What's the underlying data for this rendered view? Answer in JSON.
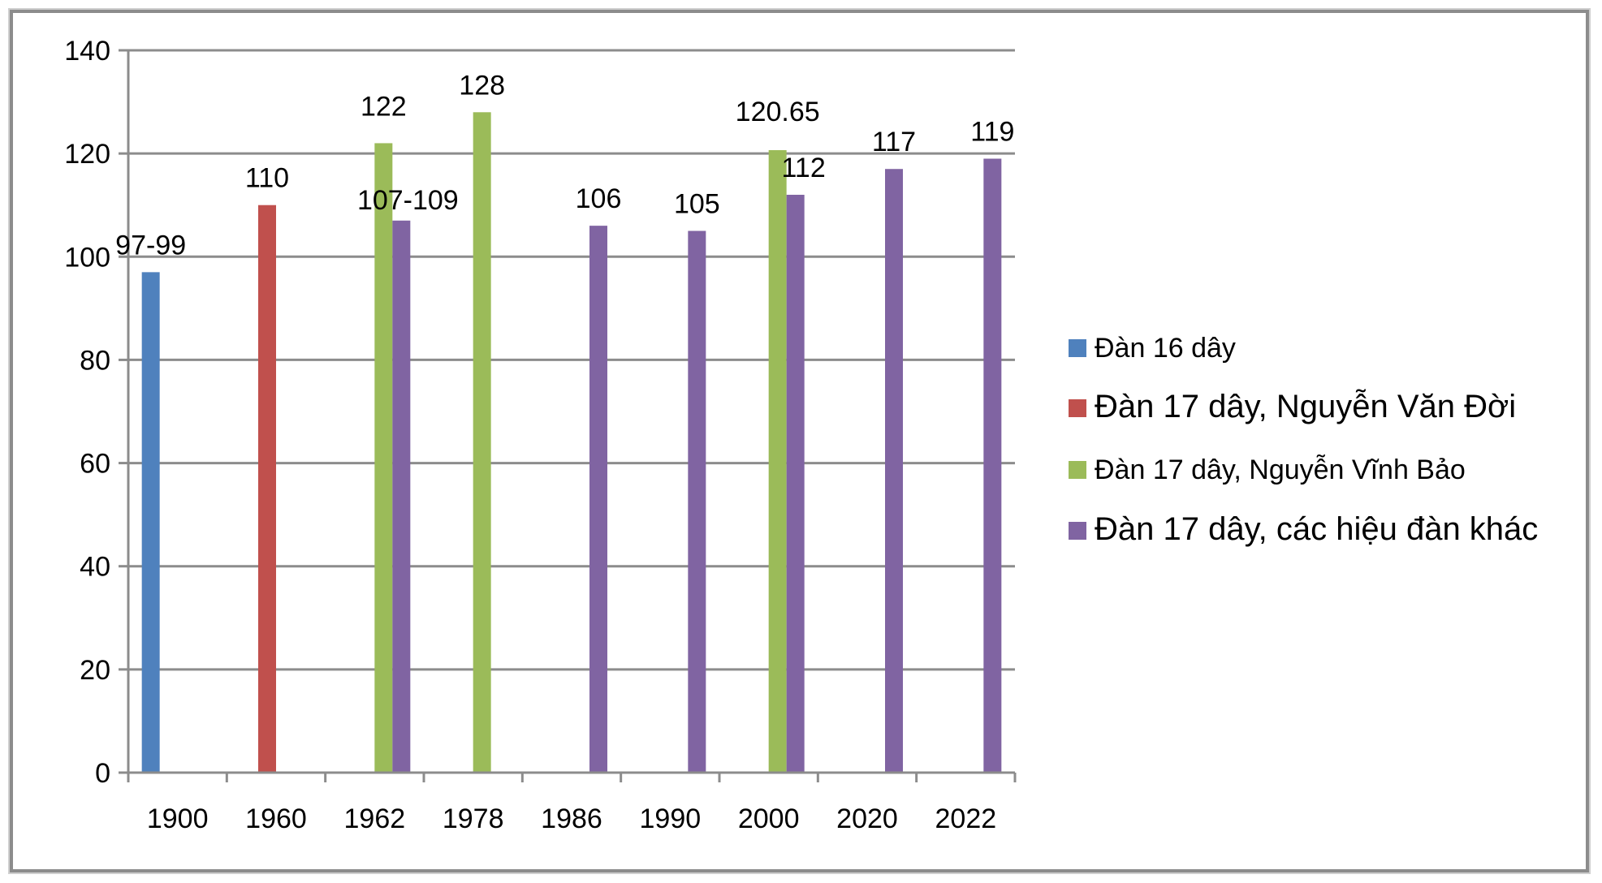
{
  "chart_data": {
    "type": "bar",
    "categories": [
      "1900",
      "1960",
      "1962",
      "1978",
      "1986",
      "1990",
      "2000",
      "2020",
      "2022"
    ],
    "ylim": [
      0,
      140
    ],
    "yticks": [
      0,
      20,
      40,
      60,
      80,
      100,
      120,
      140
    ],
    "grid": true,
    "legend_position": "right",
    "series": [
      {
        "name": "Đàn 16 dây",
        "color": "#4f81bd",
        "values": [
          97,
          null,
          null,
          null,
          null,
          null,
          null,
          null,
          null
        ],
        "labels": [
          "97-99",
          null,
          null,
          null,
          null,
          null,
          null,
          null,
          null
        ]
      },
      {
        "name": "Đàn 17 dây, Nguyễn Văn Đời",
        "color": "#c0504d",
        "values": [
          null,
          110,
          null,
          null,
          null,
          null,
          null,
          null,
          null
        ],
        "labels": [
          null,
          "110",
          null,
          null,
          null,
          null,
          null,
          null,
          null
        ]
      },
      {
        "name": "Đàn 17 dây, Nguyễn Vĩnh Bảo",
        "color": "#9bbb59",
        "values": [
          null,
          null,
          122,
          128,
          null,
          null,
          120.65,
          null,
          null
        ],
        "labels": [
          null,
          null,
          "122",
          "128",
          null,
          null,
          "120.65",
          null,
          null
        ]
      },
      {
        "name": "Đàn 17 dây, các hiệu đàn khác",
        "color": "#8064a2",
        "values": [
          null,
          null,
          107,
          null,
          106,
          105,
          112,
          117,
          119
        ],
        "labels": [
          null,
          null,
          "107-109",
          null,
          "106",
          "105",
          "112",
          "117",
          "119"
        ]
      }
    ]
  }
}
